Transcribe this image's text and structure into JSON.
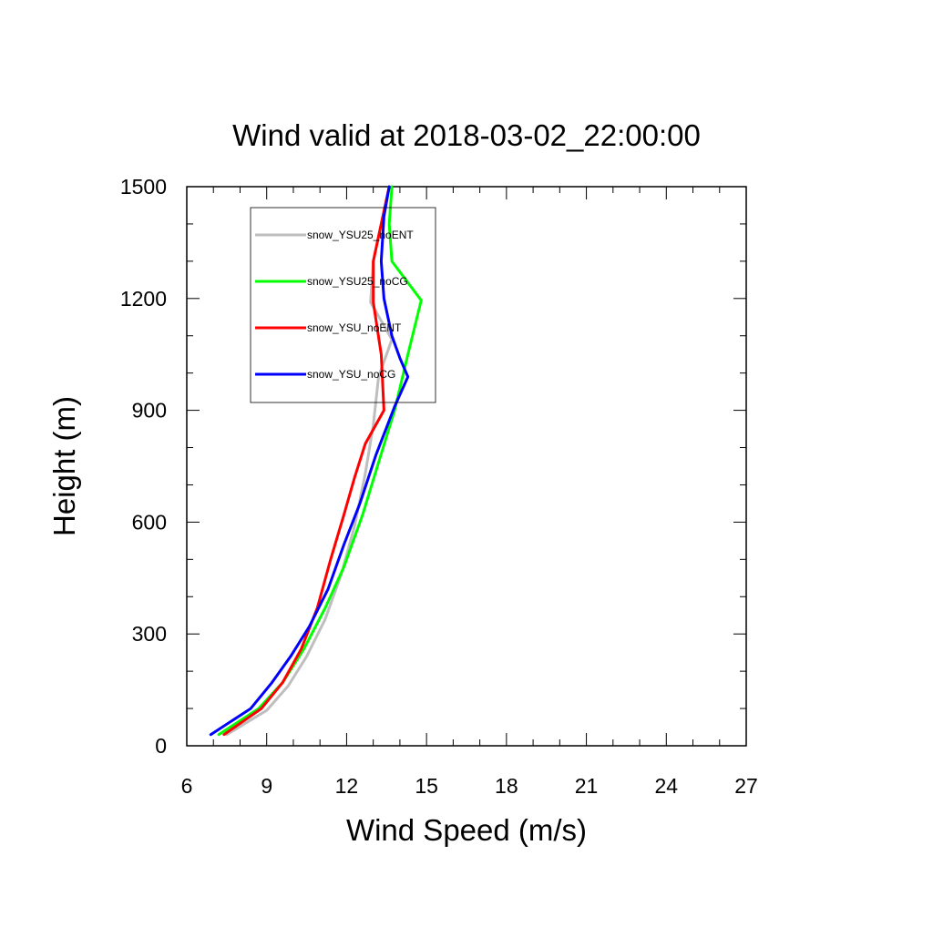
{
  "chart_data": {
    "type": "line",
    "title": "Wind valid at 2018-03-02_22:00:00",
    "xlabel": "Wind Speed (m/s)",
    "ylabel": "Height (m)",
    "xlim": [
      6,
      27
    ],
    "ylim": [
      0,
      1500
    ],
    "xticks": [
      "6",
      "9",
      "12",
      "15",
      "18",
      "21",
      "24",
      "27"
    ],
    "yticks": [
      "0",
      "300",
      "600",
      "900",
      "1200",
      "1500"
    ],
    "grid": false,
    "legend": {
      "position": "top-left",
      "border": true
    },
    "series": [
      {
        "name": "snow_YSU25_noENT",
        "color": "#bebebe",
        "points": [
          [
            7.5,
            30
          ],
          [
            9.0,
            95
          ],
          [
            9.8,
            160
          ],
          [
            10.5,
            240
          ],
          [
            11.2,
            340
          ],
          [
            11.8,
            460
          ],
          [
            12.3,
            590
          ],
          [
            12.7,
            730
          ],
          [
            13.0,
            860
          ],
          [
            13.2,
            990
          ],
          [
            13.7,
            1090
          ],
          [
            12.9,
            1190
          ],
          [
            13.0,
            1300
          ],
          [
            13.3,
            1400
          ],
          [
            13.6,
            1500
          ]
        ]
      },
      {
        "name": "snow_YSU25_noCG",
        "color": "#00ff00",
        "points": [
          [
            7.2,
            30
          ],
          [
            8.7,
            100
          ],
          [
            9.6,
            170
          ],
          [
            10.4,
            260
          ],
          [
            11.2,
            370
          ],
          [
            11.9,
            480
          ],
          [
            12.6,
            620
          ],
          [
            13.2,
            760
          ],
          [
            13.8,
            900
          ],
          [
            14.3,
            1050
          ],
          [
            14.8,
            1195
          ],
          [
            13.7,
            1300
          ],
          [
            13.6,
            1400
          ],
          [
            13.7,
            1500
          ]
        ]
      },
      {
        "name": "snow_YSU_noENT",
        "color": "#ff0000",
        "points": [
          [
            7.4,
            30
          ],
          [
            8.8,
            100
          ],
          [
            9.6,
            170
          ],
          [
            10.3,
            260
          ],
          [
            10.9,
            370
          ],
          [
            11.4,
            500
          ],
          [
            11.9,
            620
          ],
          [
            12.3,
            720
          ],
          [
            12.7,
            810
          ],
          [
            13.4,
            900
          ],
          [
            13.3,
            1050
          ],
          [
            13.0,
            1190
          ],
          [
            13.0,
            1300
          ],
          [
            13.3,
            1400
          ],
          [
            13.6,
            1500
          ]
        ]
      },
      {
        "name": "snow_YSU_noCG",
        "color": "#0000ff",
        "points": [
          [
            6.9,
            30
          ],
          [
            8.4,
            100
          ],
          [
            9.2,
            170
          ],
          [
            9.9,
            240
          ],
          [
            10.6,
            320
          ],
          [
            11.3,
            420
          ],
          [
            11.9,
            540
          ],
          [
            12.5,
            650
          ],
          [
            13.1,
            780
          ],
          [
            13.8,
            910
          ],
          [
            14.3,
            990
          ],
          [
            14.0,
            1040
          ],
          [
            13.7,
            1100
          ],
          [
            13.4,
            1200
          ],
          [
            13.3,
            1300
          ],
          [
            13.4,
            1420
          ],
          [
            13.6,
            1500
          ]
        ]
      }
    ]
  }
}
